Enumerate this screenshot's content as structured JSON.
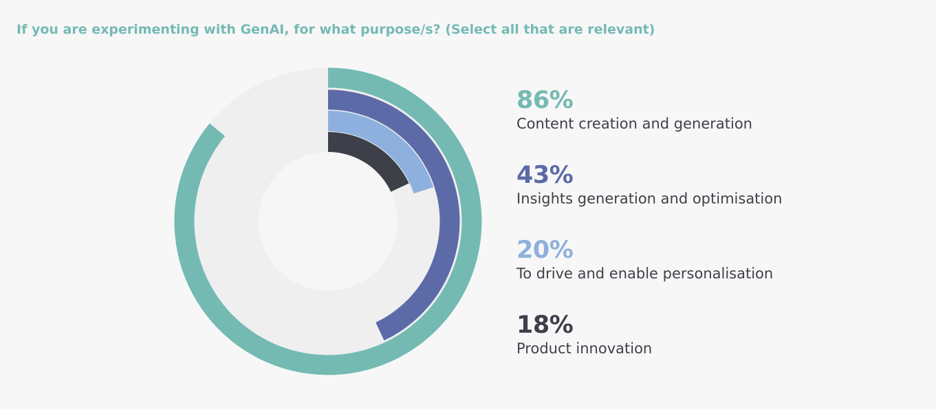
{
  "chart_data": {
    "type": "radial-bar",
    "title": "If you are experimenting with GenAI, for what purpose/s? (Select all that are relevant)",
    "series": [
      {
        "value_label": "86%",
        "category": "Content creation and generation",
        "value": 86,
        "color": "#74bab3"
      },
      {
        "value_label": "43%",
        "category": "Insights generation and optimisation",
        "value": 43,
        "color": "#5c6ba7"
      },
      {
        "value_label": "20%",
        "category": "To drive and enable personalisation",
        "value": 20,
        "color": "#8eb0de"
      },
      {
        "value_label": "18%",
        "category": "Product innovation",
        "value": 18,
        "color": "#3d4048"
      }
    ],
    "track_color": "#efefef"
  }
}
